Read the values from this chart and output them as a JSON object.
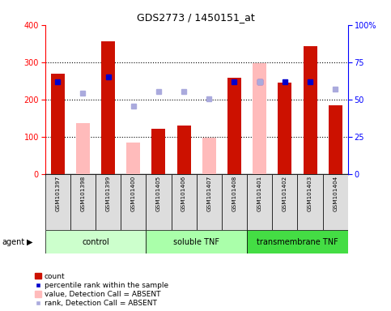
{
  "title": "GDS2773 / 1450151_at",
  "samples": [
    "GSM101397",
    "GSM101398",
    "GSM101399",
    "GSM101400",
    "GSM101405",
    "GSM101406",
    "GSM101407",
    "GSM101408",
    "GSM101401",
    "GSM101402",
    "GSM101403",
    "GSM101404"
  ],
  "count_values": [
    270,
    null,
    357,
    null,
    122,
    130,
    null,
    258,
    null,
    245,
    342,
    185
  ],
  "count_absent": [
    null,
    137,
    null,
    85,
    null,
    null,
    97,
    null,
    298,
    null,
    null,
    null
  ],
  "percentile_present": [
    248,
    null,
    260,
    null,
    null,
    null,
    null,
    248,
    248,
    248,
    248,
    null
  ],
  "percentile_absent": [
    null,
    218,
    null,
    182,
    222,
    222,
    202,
    null,
    248,
    null,
    null,
    228
  ],
  "groups": [
    {
      "label": "control",
      "start": 0,
      "end": 4,
      "color": "#ccffcc"
    },
    {
      "label": "soluble TNF",
      "start": 4,
      "end": 8,
      "color": "#aaffaa"
    },
    {
      "label": "transmembrane TNF",
      "start": 8,
      "end": 12,
      "color": "#44dd44"
    }
  ],
  "ylim_left": [
    0,
    400
  ],
  "ylim_right": [
    0,
    100
  ],
  "yticks_left": [
    0,
    100,
    200,
    300,
    400
  ],
  "yticks_right": [
    0,
    25,
    50,
    75,
    100
  ],
  "yticklabels_right": [
    "0",
    "25",
    "50",
    "75",
    "100%"
  ],
  "count_color": "#cc1100",
  "count_absent_color": "#ffbbbb",
  "percentile_color": "#0000cc",
  "percentile_absent_color": "#aaaadd",
  "bg_color": "#ffffff",
  "cell_color": "#dddddd",
  "legend": [
    {
      "label": "count",
      "color": "#cc1100",
      "type": "bar"
    },
    {
      "label": "percentile rank within the sample",
      "color": "#0000cc",
      "type": "square"
    },
    {
      "label": "value, Detection Call = ABSENT",
      "color": "#ffbbbb",
      "type": "bar"
    },
    {
      "label": "rank, Detection Call = ABSENT",
      "color": "#aaaadd",
      "type": "square"
    }
  ]
}
